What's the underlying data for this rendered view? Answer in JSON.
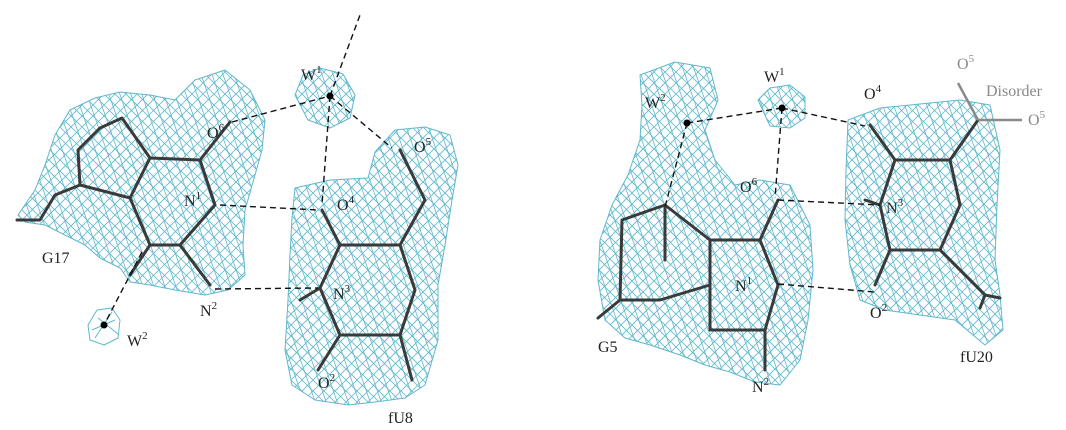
{
  "left_panel": {
    "residues": [
      "G17",
      "fU8"
    ],
    "waters": {
      "w1": {
        "base": "W",
        "sup": "1"
      },
      "w2": {
        "base": "W",
        "sup": "2"
      }
    },
    "atoms": {
      "o6": {
        "base": "O",
        "sup": "6"
      },
      "n1": {
        "base": "N",
        "sup": "1"
      },
      "n2": {
        "base": "N",
        "sup": "2"
      },
      "o4": {
        "base": "O",
        "sup": "4"
      },
      "o5": {
        "base": "O",
        "sup": "5"
      },
      "n3": {
        "base": "N",
        "sup": "3"
      },
      "o2": {
        "base": "O",
        "sup": "2"
      }
    }
  },
  "right_panel": {
    "residues": [
      "G5",
      "fU20"
    ],
    "waters": {
      "w1": {
        "base": "W",
        "sup": "1"
      },
      "w2": {
        "base": "W",
        "sup": "2"
      }
    },
    "atoms": {
      "o4": {
        "base": "O",
        "sup": "4"
      },
      "o6": {
        "base": "O",
        "sup": "6"
      },
      "n3": {
        "base": "N",
        "sup": "3"
      },
      "n1": {
        "base": "N",
        "sup": "1"
      },
      "o2": {
        "base": "O",
        "sup": "2"
      },
      "n2": {
        "base": "N",
        "sup": "2"
      },
      "o5a": {
        "base": "O",
        "sup": "5"
      },
      "o5b": {
        "base": "O",
        "sup": "5"
      }
    },
    "disorder_label": "Disorder"
  },
  "colors": {
    "mesh": "#5fb8cc",
    "bond": "#3a3a3a",
    "hbond": "#111111",
    "disorder": "#8a8a8a"
  }
}
